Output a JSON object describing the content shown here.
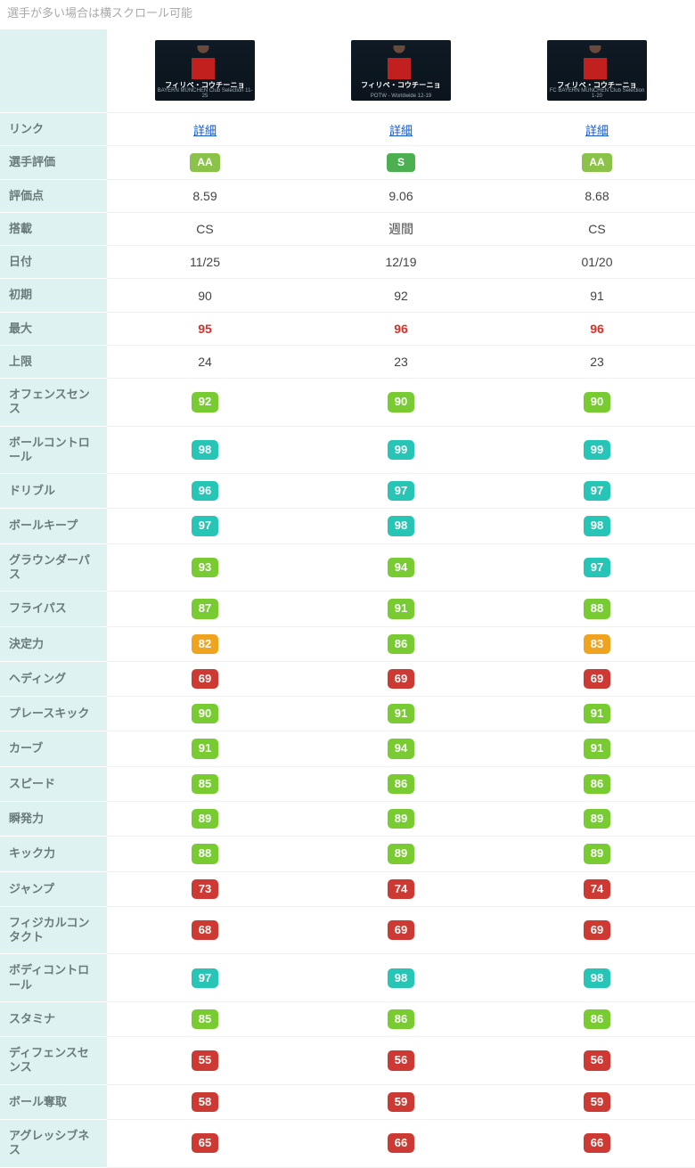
{
  "note_text": "選手が多い場合は横スクロール可能",
  "colors": {
    "label_bg": "#def2f2",
    "label_fg": "#6b7b7b",
    "link": "#1457c6",
    "value_red": "#d9302c",
    "tier_teal": "#27c5b5",
    "tier_green": "#78cc32",
    "tier_orange": "#f0a31e",
    "tier_red": "#cc3a33",
    "rating_AA": "#8bc34a",
    "rating_S": "#4caf50"
  },
  "players": [
    {
      "card_name": "フィリペ・コウチーニョ",
      "card_sub": "BAYERN MÜNCHEN Club Selection 11-25"
    },
    {
      "card_name": "フィリペ・コウチーニョ",
      "card_sub": "POTW - Worldwide 12-19"
    },
    {
      "card_name": "フィリペ・コウチーニョ",
      "card_sub": "FC BAYERN MÜNCHEN Club Selection 1-20"
    }
  ],
  "link_label": "詳細",
  "plain_rows": [
    {
      "key": "link",
      "label": "リンク",
      "type": "link"
    },
    {
      "key": "rating",
      "label": "選手評価",
      "type": "rating",
      "values": [
        "AA",
        "S",
        "AA"
      ]
    },
    {
      "key": "score",
      "label": "評価点",
      "type": "text",
      "values": [
        "8.59",
        "9.06",
        "8.68"
      ]
    },
    {
      "key": "pack",
      "label": "搭載",
      "type": "text",
      "values": [
        "CS",
        "週間",
        "CS"
      ]
    },
    {
      "key": "date",
      "label": "日付",
      "type": "text",
      "values": [
        "11/25",
        "12/19",
        "01/20"
      ]
    },
    {
      "key": "init",
      "label": "初期",
      "type": "text",
      "values": [
        "90",
        "92",
        "91"
      ]
    },
    {
      "key": "max",
      "label": "最大",
      "type": "redtext",
      "values": [
        "95",
        "96",
        "96"
      ]
    },
    {
      "key": "cap",
      "label": "上限",
      "type": "text",
      "values": [
        "24",
        "23",
        "23"
      ]
    }
  ],
  "stat_rows": [
    {
      "label": "オフェンスセンス",
      "values": [
        92,
        90,
        90
      ]
    },
    {
      "label": "ボールコントロール",
      "values": [
        98,
        99,
        99
      ]
    },
    {
      "label": "ドリブル",
      "values": [
        96,
        97,
        97
      ]
    },
    {
      "label": "ボールキープ",
      "values": [
        97,
        98,
        98
      ]
    },
    {
      "label": "グラウンダーパス",
      "values": [
        93,
        94,
        97
      ]
    },
    {
      "label": "フライパス",
      "values": [
        87,
        91,
        88
      ]
    },
    {
      "label": "決定力",
      "values": [
        82,
        86,
        83
      ]
    },
    {
      "label": "ヘディング",
      "values": [
        69,
        69,
        69
      ]
    },
    {
      "label": "プレースキック",
      "values": [
        90,
        91,
        91
      ]
    },
    {
      "label": "カーブ",
      "values": [
        91,
        94,
        91
      ]
    },
    {
      "label": "スピード",
      "values": [
        85,
        86,
        86
      ]
    },
    {
      "label": "瞬発力",
      "values": [
        89,
        89,
        89
      ]
    },
    {
      "label": "キック力",
      "values": [
        88,
        89,
        89
      ]
    },
    {
      "label": "ジャンプ",
      "values": [
        73,
        74,
        74
      ]
    },
    {
      "label": "フィジカルコンタクト",
      "values": [
        68,
        69,
        69
      ]
    },
    {
      "label": "ボディコントロール",
      "values": [
        97,
        98,
        98
      ]
    },
    {
      "label": "スタミナ",
      "values": [
        85,
        86,
        86
      ]
    },
    {
      "label": "ディフェンスセンス",
      "values": [
        55,
        56,
        56
      ]
    },
    {
      "label": "ボール奪取",
      "values": [
        58,
        59,
        59
      ]
    },
    {
      "label": "アグレッシブネス",
      "values": [
        65,
        66,
        66
      ]
    }
  ],
  "stat_tiers": {
    "teal_min": 95,
    "green_min": 85,
    "orange_min": 80
  }
}
